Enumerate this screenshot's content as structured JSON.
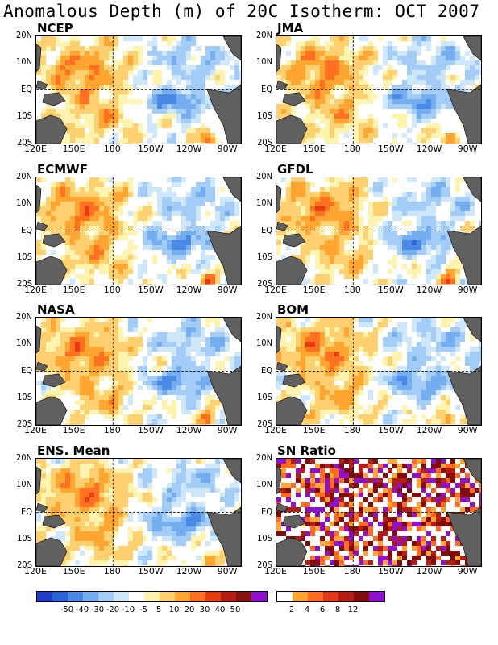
{
  "title": "Anomalous Depth (m) of 20C Isotherm: OCT 2007",
  "lat_labels": [
    "20N",
    "10N",
    "EQ",
    "10S",
    "20S"
  ],
  "lon_labels": [
    "120E",
    "150E",
    "180",
    "150W",
    "120W",
    "90W"
  ],
  "panels": [
    {
      "label": "NCEP"
    },
    {
      "label": "JMA"
    },
    {
      "label": "ECMWF"
    },
    {
      "label": "GFDL"
    },
    {
      "label": "NASA"
    },
    {
      "label": "BOM"
    },
    {
      "label": "ENS. Mean"
    },
    {
      "label": "SN Ratio"
    }
  ],
  "colorbar_anomaly": {
    "colors": [
      "#1e3cc8",
      "#2b62d8",
      "#4a8ae6",
      "#74aef0",
      "#a3cdf6",
      "#cfe7fb",
      "#ffffff",
      "#fff3b0",
      "#ffd070",
      "#ffa530",
      "#ff7020",
      "#e63c10",
      "#b81e10",
      "#8a1010",
      "#9010d0"
    ],
    "labels": [
      "-50",
      "-40",
      "-30",
      "-20",
      "-10",
      "-5",
      "5",
      "10",
      "20",
      "30",
      "40",
      "50"
    ]
  },
  "colorbar_snr": {
    "colors": [
      "#ffffff",
      "#ffa530",
      "#ff6a20",
      "#e0361a",
      "#b51c14",
      "#800c0c",
      "#9010d0"
    ],
    "labels": [
      "2",
      "4",
      "6",
      "8",
      "12"
    ]
  },
  "colors": {
    "land": "#606060",
    "background": "#ffffff"
  }
}
